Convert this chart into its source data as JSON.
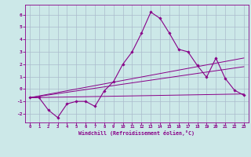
{
  "title": "",
  "xlabel": "Windchill (Refroidissement éolien,°C)",
  "bg_color": "#cce8e8",
  "grid_color": "#aabbcc",
  "line_color": "#880088",
  "xlim": [
    -0.5,
    23.5
  ],
  "ylim": [
    -2.7,
    6.8
  ],
  "xticks": [
    0,
    1,
    2,
    3,
    4,
    5,
    6,
    7,
    8,
    9,
    10,
    11,
    12,
    13,
    14,
    15,
    16,
    17,
    18,
    19,
    20,
    21,
    22,
    23
  ],
  "yticks": [
    -2,
    -1,
    0,
    1,
    2,
    3,
    4,
    5,
    6
  ],
  "series1_x": [
    0,
    1,
    2,
    3,
    4,
    5,
    6,
    7,
    8,
    9,
    10,
    11,
    12,
    13,
    14,
    15,
    16,
    17,
    18,
    19,
    20,
    21,
    22,
    23
  ],
  "series1_y": [
    -0.7,
    -0.7,
    -1.7,
    -2.3,
    -1.2,
    -1.0,
    -1.0,
    -1.4,
    -0.15,
    0.6,
    2.0,
    3.0,
    4.5,
    6.2,
    5.7,
    4.5,
    3.2,
    3.0,
    1.9,
    0.95,
    2.5,
    0.85,
    -0.1,
    -0.5
  ],
  "series2_x": [
    0,
    23
  ],
  "series2_y": [
    -0.7,
    -0.4
  ],
  "series3_x": [
    0,
    23
  ],
  "series3_y": [
    -0.7,
    2.5
  ],
  "series4_x": [
    0,
    23
  ],
  "series4_y": [
    -0.7,
    1.8
  ]
}
